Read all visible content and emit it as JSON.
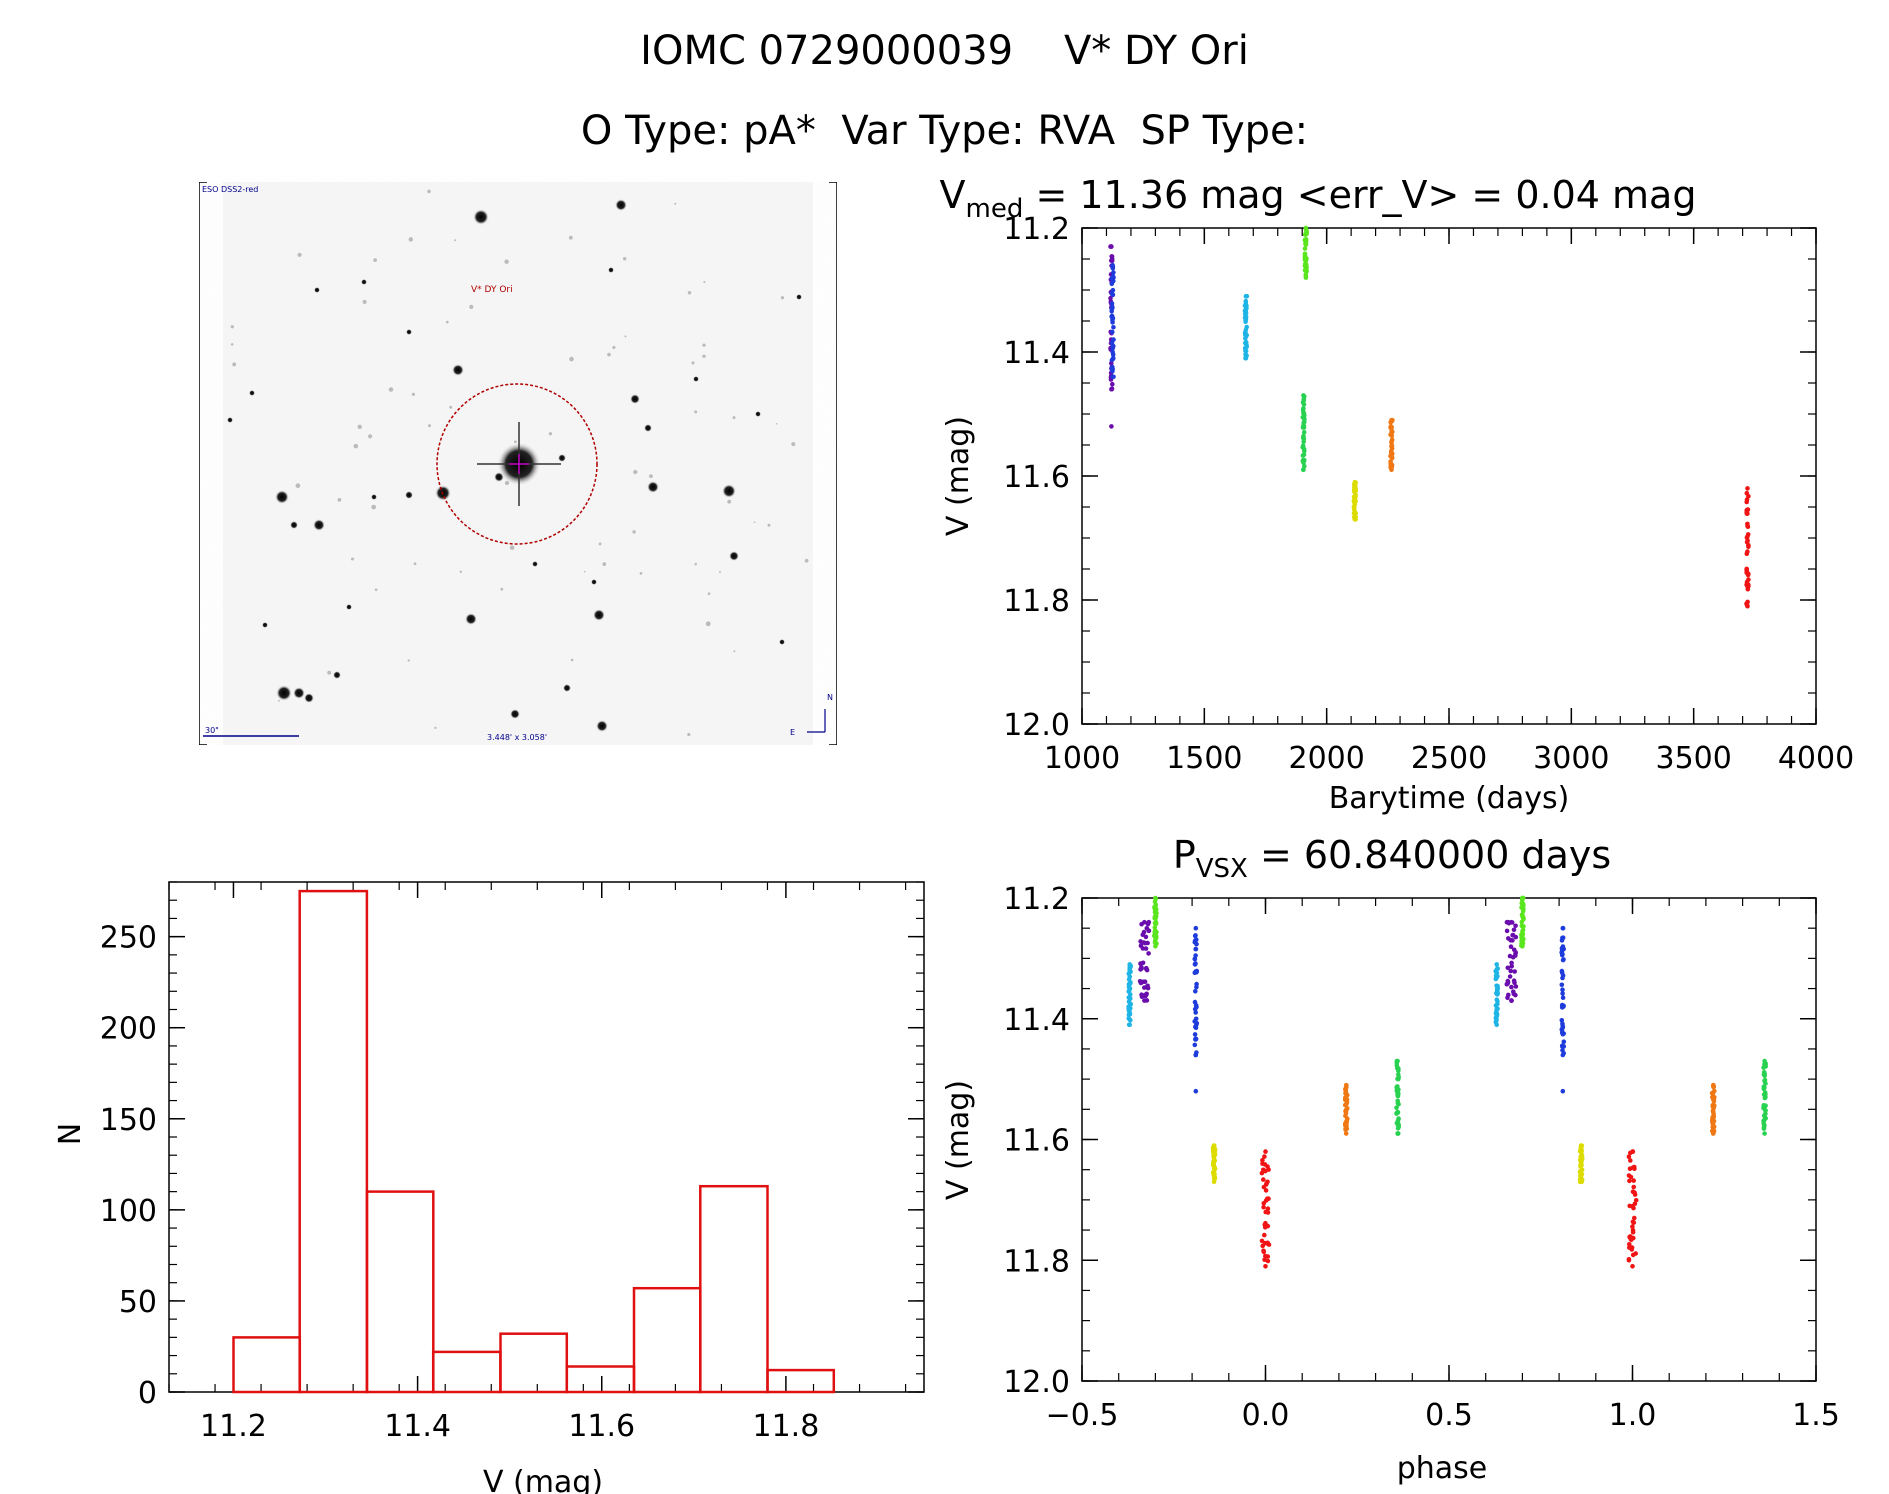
{
  "header": {
    "line1": "IOMC 0729000039    V* DY Ori",
    "line2": "O Type: pA*  Var Type: RVA  SP Type:"
  },
  "finder_chart": {
    "survey_label": "ESO DSS2-red",
    "target_label": "V* DY Ori",
    "scale_label": "30\"",
    "fov_label": "3.448' x 3.058'",
    "compass_n": "N",
    "compass_e": "E",
    "circle_color": "#b00000",
    "label_color": "#00008b"
  },
  "chart_data": [
    {
      "type": "scatter",
      "id": "light_curve",
      "title_main": "V",
      "title_sub": "med",
      "title_rest": " = 11.36 mag <err_V> = 0.04 mag",
      "xlabel": "Barytime (days)",
      "ylabel": "V (mag)",
      "xlim": [
        1000,
        4000
      ],
      "ylim": [
        12.0,
        11.2
      ],
      "y_reversed": true,
      "xticks": [
        1000,
        1500,
        2000,
        2500,
        3000,
        3500,
        4000
      ],
      "xtick_labels": [
        "1000",
        "1500",
        "2000",
        "2500",
        "3000",
        "3500",
        "4000"
      ],
      "yticks": [
        11.2,
        11.4,
        11.6,
        11.8,
        12.0
      ],
      "ytick_labels": [
        "11.2",
        "11.4",
        "11.6",
        "11.8",
        "12.0"
      ],
      "groups": [
        {
          "x": 1120,
          "y_min": 11.23,
          "y_max": 11.46,
          "outliers": [
            11.52
          ],
          "color": "#6a0dad"
        },
        {
          "x": 1125,
          "y_min": 11.26,
          "y_max": 11.44,
          "color": "#1e3cdc"
        },
        {
          "x": 1670,
          "y_min": 11.31,
          "y_max": 11.41,
          "color": "#1eb4e6"
        },
        {
          "x": 1905,
          "y_min": 11.47,
          "y_max": 11.59,
          "color": "#28d250"
        },
        {
          "x": 1915,
          "y_min": 11.2,
          "y_max": 11.28,
          "color": "#5ae61e"
        },
        {
          "x": 2115,
          "y_min": 11.61,
          "y_max": 11.67,
          "color": "#dcdc00"
        },
        {
          "x": 2265,
          "y_min": 11.51,
          "y_max": 11.59,
          "color": "#f07814"
        },
        {
          "x": 3720,
          "y_min": 11.62,
          "y_max": 11.81,
          "color": "#f01414"
        }
      ]
    },
    {
      "type": "scatter",
      "id": "phased_curve",
      "title_main": "P",
      "title_sub": "VSX",
      "title_rest": " = 60.840000 days",
      "xlabel": "phase",
      "ylabel": "V (mag)",
      "xlim": [
        -0.5,
        1.5
      ],
      "ylim": [
        12.0,
        11.2
      ],
      "y_reversed": true,
      "xticks": [
        -0.5,
        0.0,
        0.5,
        1.0,
        1.5
      ],
      "xtick_labels": [
        "−0.5",
        "0.0",
        "0.5",
        "1.0",
        "1.5"
      ],
      "yticks": [
        11.2,
        11.4,
        11.6,
        11.8,
        12.0
      ],
      "ytick_labels": [
        "11.2",
        "11.4",
        "11.6",
        "11.8",
        "12.0"
      ],
      "groups": [
        {
          "x": -0.37,
          "y_min": 11.31,
          "y_max": 11.41,
          "color": "#1eb4e6"
        },
        {
          "x": -0.33,
          "y_min": 11.24,
          "y_max": 11.37,
          "color": "#6a0dad",
          "spread": 0.025
        },
        {
          "x": -0.3,
          "y_min": 11.2,
          "y_max": 11.28,
          "color": "#5ae61e"
        },
        {
          "x": -0.19,
          "y_min": 11.25,
          "y_max": 11.46,
          "outliers": [
            11.52
          ],
          "color": "#1e3cdc"
        },
        {
          "x": -0.14,
          "y_min": 11.61,
          "y_max": 11.67,
          "color": "#dcdc00"
        },
        {
          "x": 0.0,
          "y_min": 11.62,
          "y_max": 11.81,
          "color": "#f01414",
          "spread": 0.02
        },
        {
          "x": 0.22,
          "y_min": 11.51,
          "y_max": 11.59,
          "color": "#f07814"
        },
        {
          "x": 0.36,
          "y_min": 11.47,
          "y_max": 11.59,
          "color": "#28d250"
        },
        {
          "x": 0.63,
          "y_min": 11.31,
          "y_max": 11.41,
          "color": "#1eb4e6"
        },
        {
          "x": 0.67,
          "y_min": 11.24,
          "y_max": 11.37,
          "color": "#6a0dad",
          "spread": 0.025
        },
        {
          "x": 0.7,
          "y_min": 11.2,
          "y_max": 11.28,
          "color": "#5ae61e"
        },
        {
          "x": 0.81,
          "y_min": 11.25,
          "y_max": 11.46,
          "outliers": [
            11.52
          ],
          "color": "#1e3cdc"
        },
        {
          "x": 0.86,
          "y_min": 11.61,
          "y_max": 11.67,
          "color": "#dcdc00"
        },
        {
          "x": 1.0,
          "y_min": 11.62,
          "y_max": 11.81,
          "color": "#f01414",
          "spread": 0.02
        },
        {
          "x": 1.22,
          "y_min": 11.51,
          "y_max": 11.59,
          "color": "#f07814"
        },
        {
          "x": 1.36,
          "y_min": 11.47,
          "y_max": 11.59,
          "color": "#28d250"
        }
      ]
    },
    {
      "type": "bar",
      "id": "histogram",
      "xlabel": "V (mag)",
      "ylabel": "N",
      "xlim": [
        11.13,
        11.95
      ],
      "ylim": [
        0,
        280
      ],
      "xticks": [
        11.2,
        11.4,
        11.6,
        11.8
      ],
      "xtick_labels": [
        "11.2",
        "11.4",
        "11.6",
        "11.8"
      ],
      "yticks": [
        0,
        50,
        100,
        150,
        200,
        250
      ],
      "ytick_labels": [
        "0",
        "50",
        "100",
        "150",
        "200",
        "250"
      ],
      "bar_color": "#e01010",
      "bins": [
        {
          "x0": 11.2,
          "x1": 11.272,
          "count": 30
        },
        {
          "x0": 11.272,
          "x1": 11.345,
          "count": 275
        },
        {
          "x0": 11.345,
          "x1": 11.417,
          "count": 110
        },
        {
          "x0": 11.417,
          "x1": 11.49,
          "count": 22
        },
        {
          "x0": 11.49,
          "x1": 11.562,
          "count": 32
        },
        {
          "x0": 11.562,
          "x1": 11.635,
          "count": 14
        },
        {
          "x0": 11.635,
          "x1": 11.707,
          "count": 57
        },
        {
          "x0": 11.707,
          "x1": 11.78,
          "count": 113
        },
        {
          "x0": 11.78,
          "x1": 11.852,
          "count": 12
        }
      ]
    }
  ]
}
